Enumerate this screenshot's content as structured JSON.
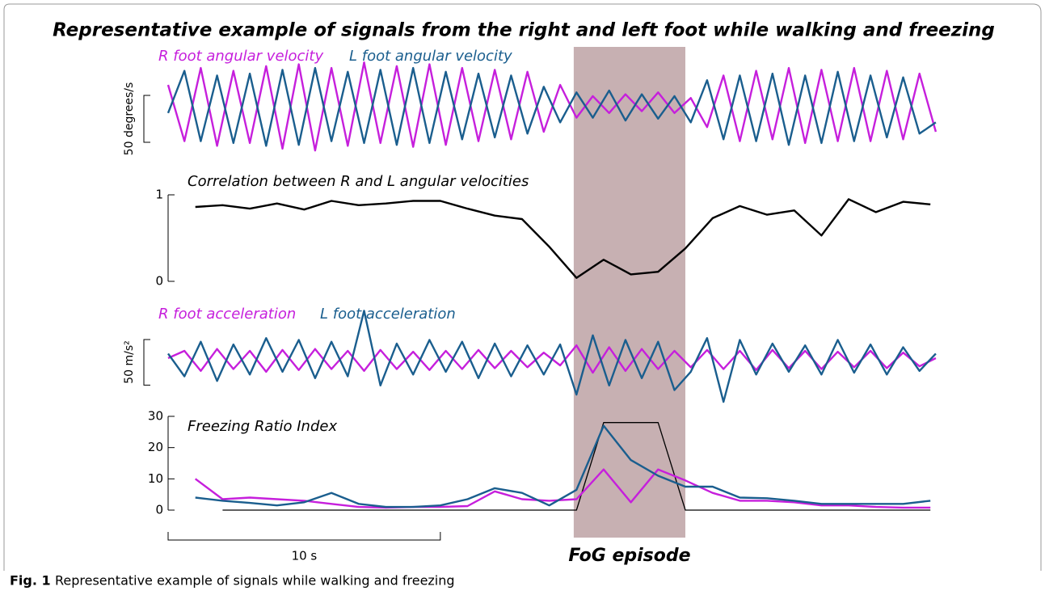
{
  "title": "Representative example of signals from the right and left foot while walking and freezing",
  "caption": {
    "label": "Fig. 1",
    "text": "Representative example of signals while walking and freezing"
  },
  "xlim": [
    0,
    28.5
  ],
  "time_scale_bar": {
    "value": 10,
    "label": "10 s"
  },
  "fog_episode": {
    "range": [
      14.9,
      19.0
    ],
    "label": "FoG episode",
    "color": "#c7b0b2"
  },
  "chart_data": [
    {
      "type": "line",
      "ylim": [
        -55,
        45
      ],
      "scale_bar": 50,
      "ylabel": "50 degrees/s",
      "x": [
        0,
        0.6,
        1.2,
        1.8,
        2.4,
        3,
        3.6,
        4.2,
        4.8,
        5.4,
        6,
        6.6,
        7.2,
        7.8,
        8.4,
        9,
        9.6,
        10.2,
        10.8,
        11.4,
        12,
        12.6,
        13.2,
        13.8,
        14.4,
        15,
        15.6,
        16.2,
        16.8,
        17.4,
        18,
        18.6,
        19.2,
        19.8,
        20.4,
        21,
        21.6,
        22.2,
        22.8,
        23.4,
        24,
        24.6,
        25.2,
        25.8,
        26.4,
        27,
        27.6,
        28.2
      ],
      "series": [
        {
          "name": "R foot angular velocity",
          "color": "#c61fdc",
          "values": [
            20,
            -40,
            38,
            -45,
            35,
            -42,
            40,
            -48,
            42,
            -50,
            38,
            -45,
            44,
            -42,
            40,
            -46,
            42,
            -44,
            38,
            -40,
            36,
            -38,
            34,
            -30,
            20,
            -15,
            8,
            -10,
            10,
            -8,
            12,
            -10,
            6,
            -25,
            30,
            -40,
            35,
            -38,
            38,
            -42,
            36,
            -40,
            38,
            -40,
            35,
            -38,
            32,
            -30
          ]
        },
        {
          "name": "L foot angular velocity",
          "color": "#1a5e8e",
          "values": [
            -10,
            35,
            -40,
            30,
            -42,
            32,
            -45,
            36,
            -44,
            38,
            -40,
            34,
            -42,
            36,
            -44,
            38,
            -42,
            34,
            -38,
            32,
            -36,
            30,
            -32,
            18,
            -20,
            12,
            -15,
            14,
            -18,
            10,
            -16,
            8,
            -20,
            25,
            -38,
            30,
            -40,
            32,
            -44,
            30,
            -42,
            34,
            -40,
            30,
            -36,
            28,
            -32,
            -20
          ]
        }
      ]
    },
    {
      "type": "line",
      "title": "Correlation between R and L angular velocities",
      "ylim": [
        0,
        1
      ],
      "yticks": [
        0,
        1
      ],
      "x": [
        1,
        2,
        3,
        4,
        5,
        6,
        7,
        8,
        9,
        10,
        11,
        12,
        13,
        14,
        15,
        16,
        17,
        18,
        19,
        20,
        21,
        22,
        23,
        24,
        25,
        26,
        27,
        28
      ],
      "series": [
        {
          "color": "#000000",
          "values": [
            0.86,
            0.88,
            0.84,
            0.9,
            0.83,
            0.93,
            0.88,
            0.9,
            0.93,
            0.93,
            0.84,
            0.76,
            0.72,
            0.4,
            0.04,
            0.25,
            0.08,
            0.11,
            0.38,
            0.73,
            0.87,
            0.77,
            0.82,
            0.53,
            0.95,
            0.8,
            0.92,
            0.89
          ]
        }
      ]
    },
    {
      "type": "line",
      "ylim": [
        -55,
        55
      ],
      "scale_bar": 50,
      "ylabel": "50 m/s²",
      "x": [
        0,
        0.6,
        1.2,
        1.8,
        2.4,
        3,
        3.6,
        4.2,
        4.8,
        5.4,
        6,
        6.6,
        7.2,
        7.8,
        8.4,
        9,
        9.6,
        10.2,
        10.8,
        11.4,
        12,
        12.6,
        13.2,
        13.8,
        14.4,
        15,
        15.6,
        16.2,
        16.8,
        17.4,
        18,
        18.6,
        19.2,
        19.8,
        20.4,
        21,
        21.6,
        22.2,
        22.8,
        23.4,
        24,
        24.6,
        25.2,
        25.8,
        26.4,
        27,
        27.6,
        28.2
      ],
      "series": [
        {
          "name": "R foot acceleration",
          "color": "#c61fdc",
          "values": [
            0,
            8,
            -14,
            10,
            -12,
            8,
            -15,
            9,
            -13,
            10,
            -12,
            8,
            -14,
            9,
            -12,
            7,
            -13,
            8,
            -12,
            9,
            -11,
            8,
            -10,
            6,
            -8,
            14,
            -16,
            12,
            -14,
            10,
            -12,
            8,
            -10,
            9,
            -12,
            8,
            -13,
            9,
            -11,
            8,
            -12,
            7,
            -10,
            8,
            -11,
            6,
            -9,
            0
          ]
        },
        {
          "name": "L foot acceleration",
          "color": "#1a5e8e",
          "values": [
            5,
            -20,
            18,
            -25,
            15,
            -18,
            22,
            -15,
            20,
            -22,
            18,
            -20,
            52,
            -30,
            16,
            -18,
            20,
            -15,
            18,
            -22,
            16,
            -20,
            14,
            -18,
            15,
            -40,
            25,
            -30,
            20,
            -22,
            18,
            -35,
            -15,
            22,
            -48,
            20,
            -18,
            16,
            -15,
            14,
            -18,
            20,
            -16,
            15,
            -18,
            12,
            -14,
            5
          ]
        }
      ]
    },
    {
      "type": "line",
      "title": "Freezing Ratio Index",
      "ylim": [
        0,
        30
      ],
      "yticks": [
        0,
        10,
        20,
        30
      ],
      "x": [
        1,
        2,
        3,
        4,
        5,
        6,
        7,
        8,
        9,
        10,
        11,
        12,
        13,
        14,
        15,
        16,
        17,
        18,
        19,
        20,
        21,
        22,
        23,
        24,
        25,
        26,
        27,
        28
      ],
      "series": [
        {
          "color": "#c61fdc",
          "values": [
            10,
            3.5,
            4,
            3.5,
            3,
            2,
            1,
            0.8,
            1,
            1,
            1.3,
            6,
            3.5,
            3,
            3.5,
            13,
            2.5,
            13,
            9.5,
            5.5,
            3,
            3,
            2.5,
            1.5,
            1.5,
            1,
            0.8,
            0.8
          ]
        },
        {
          "color": "#1a5e8e",
          "values": [
            4,
            3,
            2.3,
            1.5,
            2.5,
            5.5,
            2,
            1,
            1,
            1.5,
            3.5,
            7,
            5.5,
            1.5,
            6.5,
            27,
            16,
            11,
            7.5,
            7.5,
            4,
            3.8,
            3,
            2,
            2,
            2,
            2,
            3
          ]
        }
      ],
      "fog_indicator": {
        "color": "#000000",
        "x": [
          2,
          15,
          16,
          18,
          19,
          28
        ],
        "values": [
          0,
          0,
          28,
          28,
          0,
          0
        ]
      }
    }
  ]
}
